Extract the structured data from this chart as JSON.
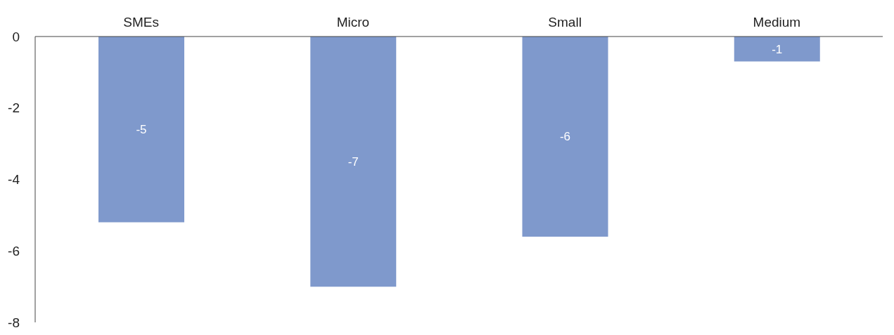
{
  "chart_data": {
    "type": "bar",
    "categories": [
      "SMEs",
      "Micro",
      "Small",
      "Medium"
    ],
    "values": [
      -5.2,
      -7.0,
      -5.6,
      -0.7
    ],
    "value_labels": [
      "-5",
      "-7",
      "-6",
      "-1"
    ],
    "color": "#7f99cc",
    "ylim": [
      -8,
      0
    ],
    "yticks": [
      -8,
      -6,
      -4,
      -2,
      0
    ],
    "grid": false
  }
}
